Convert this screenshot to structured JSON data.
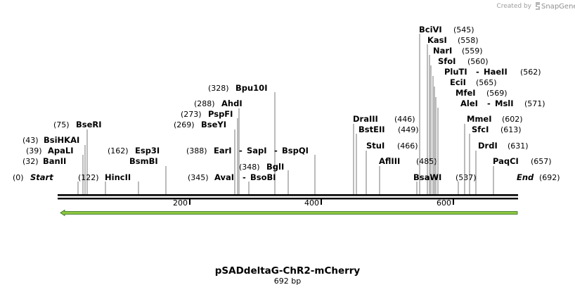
{
  "credit": {
    "prefix": "Created by",
    "brand": "SnapGene"
  },
  "plasmid": {
    "name": "pSADdeltaG-ChR2-mCherry",
    "length_label": "692 bp",
    "length": 692
  },
  "colors": {
    "feature_arrow": "#8cc63f",
    "feature_outline": "#2e6b1b",
    "backbone": "#000000",
    "leader": "#555555"
  },
  "ends": {
    "start": {
      "name": "Start",
      "pos_label": "(0)"
    },
    "end": {
      "name": "End",
      "pos_label": "(692)"
    }
  },
  "ticks": [
    {
      "bp": 200,
      "label": "200"
    },
    {
      "bp": 400,
      "label": "400"
    },
    {
      "bp": 600,
      "label": "600"
    }
  ],
  "sites": [
    {
      "name": "BanII",
      "pos_label": "(32)",
      "pos": 32
    },
    {
      "name": "ApaLI",
      "pos_label": "(39)",
      "pos": 39
    },
    {
      "name": "BsiHKAI",
      "pos_label": "(43)",
      "pos": 43
    },
    {
      "name": "BseRI",
      "pos_label": "(75)",
      "pos": 75
    },
    {
      "name": "HincII",
      "pos_label": "(122)",
      "pos": 122
    },
    {
      "name": "Esp3I",
      "pos_label": "(162)",
      "pos": 162
    },
    {
      "name": "BsmBI",
      "pos_label": "",
      "pos": 162
    },
    {
      "name": "BseYI",
      "pos_label": "(269)",
      "pos": 269
    },
    {
      "name": "PspFI",
      "pos_label": "(273)",
      "pos": 273
    },
    {
      "name": "AhdI",
      "pos_label": "(288)",
      "pos": 288
    },
    {
      "name": "Bpu10I",
      "pos_label": "(328)",
      "pos": 328
    },
    {
      "name": "AvaI",
      "pos_label": "(345)",
      "pos": 345
    },
    {
      "name": "BsoBI",
      "pos_label": "",
      "pos": 345
    },
    {
      "name": "BglI",
      "pos_label": "(348)",
      "pos": 348
    },
    {
      "name": "EarI",
      "pos_label": "(388)",
      "pos": 388
    },
    {
      "name": "SapI",
      "pos_label": "",
      "pos": 388
    },
    {
      "name": "BspQI",
      "pos_label": "",
      "pos": 388
    },
    {
      "name": "DraIII",
      "pos_label": "(446)",
      "pos": 446
    },
    {
      "name": "BstEII",
      "pos_label": "(449)",
      "pos": 449
    },
    {
      "name": "StuI",
      "pos_label": "(466)",
      "pos": 466
    },
    {
      "name": "AflIII",
      "pos_label": "(485)",
      "pos": 485
    },
    {
      "name": "BsaWI",
      "pos_label": "(537)",
      "pos": 537
    },
    {
      "name": "BciVI",
      "pos_label": "(545)",
      "pos": 545
    },
    {
      "name": "KasI",
      "pos_label": "(558)",
      "pos": 558
    },
    {
      "name": "NarI",
      "pos_label": "(559)",
      "pos": 559
    },
    {
      "name": "SfoI",
      "pos_label": "(560)",
      "pos": 560
    },
    {
      "name": "PluTI",
      "pos_label": "",
      "pos": 562
    },
    {
      "name": "HaeII",
      "pos_label": "(562)",
      "pos": 562
    },
    {
      "name": "EciI",
      "pos_label": "(565)",
      "pos": 565
    },
    {
      "name": "MfeI",
      "pos_label": "(569)",
      "pos": 569
    },
    {
      "name": "AleI",
      "pos_label": "",
      "pos": 571
    },
    {
      "name": "MslI",
      "pos_label": "(571)",
      "pos": 571
    },
    {
      "name": "MmeI",
      "pos_label": "(602)",
      "pos": 602
    },
    {
      "name": "SfcI",
      "pos_label": "(613)",
      "pos": 613
    },
    {
      "name": "DrdI",
      "pos_label": "(631)",
      "pos": 631
    },
    {
      "name": "PaqCI",
      "pos_label": "(657)",
      "pos": 657
    }
  ]
}
